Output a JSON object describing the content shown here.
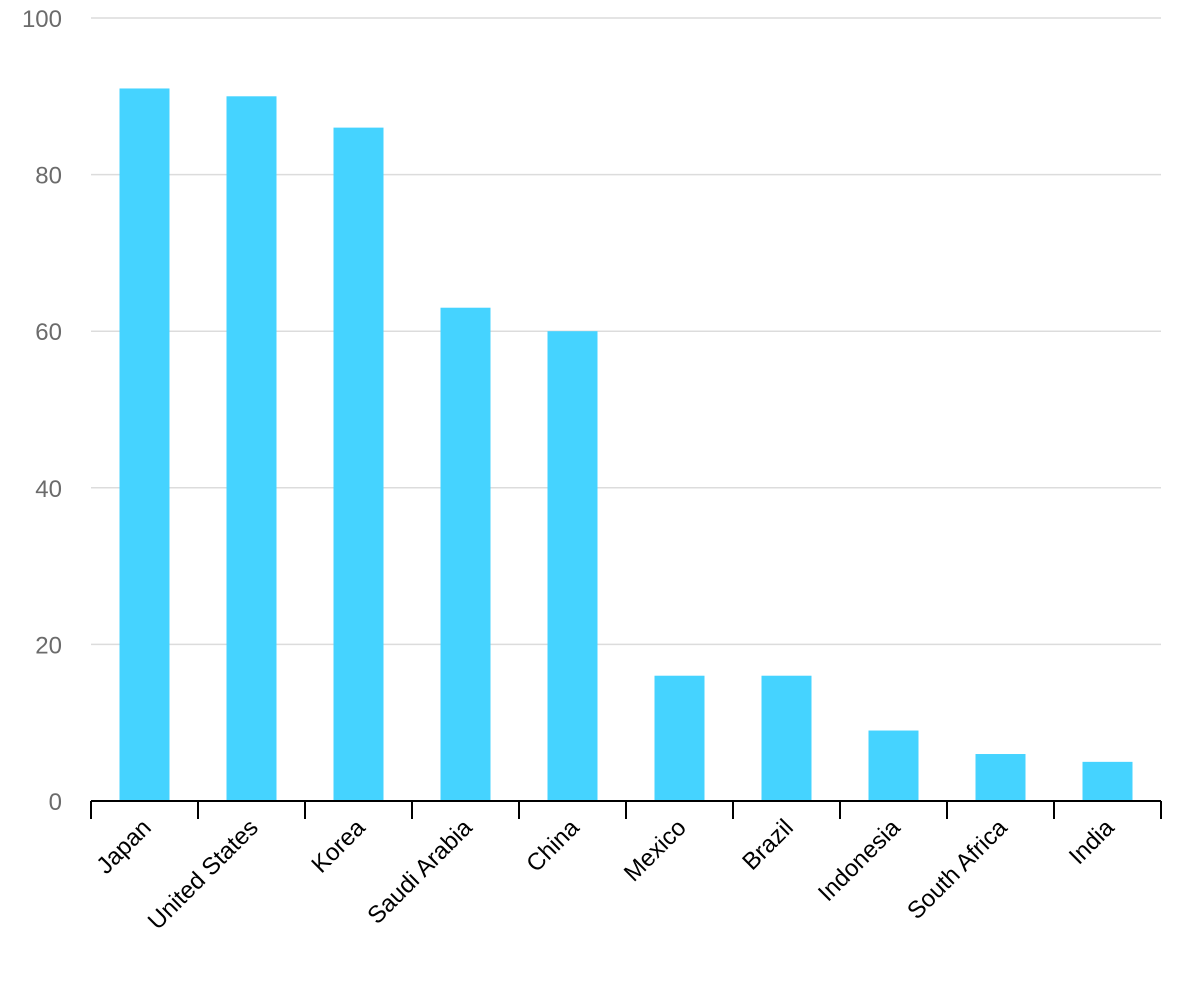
{
  "chart_data": {
    "type": "bar",
    "categories": [
      "Japan",
      "United States",
      "Korea",
      "Saudi Arabia",
      "China",
      "Mexico",
      "Brazil",
      "Indonesia",
      "South Africa",
      "India"
    ],
    "values": [
      91,
      90,
      86,
      63,
      60,
      16,
      16,
      9,
      6,
      5
    ],
    "title": "",
    "xlabel": "",
    "ylabel": "",
    "ylim": [
      0,
      100
    ],
    "yticks": [
      0,
      20,
      40,
      60,
      80,
      100
    ],
    "grid": true,
    "legend": "none",
    "bar_color": "#45d3ff"
  }
}
